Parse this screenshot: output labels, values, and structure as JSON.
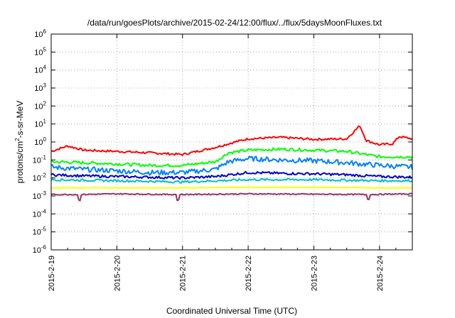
{
  "chart_data": {
    "type": "line",
    "title": "/data/run/goesPlots/archive/2015-02-24/12:00/flux/../flux/5daysMoonFluxes.txt",
    "xlabel": "Coordinated Universal Time (UTC)",
    "ylabel": {
      "prefix": "protons/cm",
      "sup": "2",
      "suffix": "-s-sr-MeV"
    },
    "y_scale": "log",
    "ylim_exp": [
      -6,
      6
    ],
    "y_tick_exps": [
      -6,
      -5,
      -4,
      -3,
      -2,
      -1,
      0,
      1,
      2,
      3,
      4,
      5,
      6
    ],
    "xlim": [
      "2015-02-19",
      "2015-02-24T12:00"
    ],
    "x_tick_labels": [
      "2015-2-19",
      "2015-2-20",
      "2015-2-21",
      "2015-2-22",
      "2015-2-23",
      "2015-2-24"
    ],
    "grid": true,
    "series": [
      {
        "color": "#ff0000",
        "x": [
          0,
          0.25,
          0.5,
          1.0,
          1.5,
          2.0,
          2.5,
          2.8,
          3.0,
          3.5,
          4.0,
          4.5,
          4.7,
          4.8,
          5.0,
          5.2,
          5.3,
          5.5
        ],
        "values": [
          0.3,
          0.6,
          0.35,
          0.3,
          0.25,
          0.2,
          0.5,
          1.0,
          1.5,
          1.8,
          1.4,
          1.5,
          8.0,
          1.2,
          0.7,
          0.8,
          2.0,
          1.5
        ]
      },
      {
        "color": "#00ff00",
        "x": [
          0,
          0.5,
          1.0,
          1.5,
          2.0,
          2.5,
          2.7,
          3.0,
          3.5,
          4.0,
          4.5,
          5.0,
          5.5
        ],
        "values": [
          0.08,
          0.07,
          0.06,
          0.05,
          0.05,
          0.08,
          0.25,
          0.35,
          0.4,
          0.35,
          0.3,
          0.15,
          0.15
        ]
      },
      {
        "color": "#0080ff",
        "x": [
          0,
          0.5,
          1.0,
          1.5,
          2.0,
          2.5,
          2.7,
          3.0,
          3.5,
          4.0,
          4.5,
          5.0,
          5.5
        ],
        "values": [
          0.04,
          0.03,
          0.025,
          0.02,
          0.02,
          0.03,
          0.08,
          0.12,
          0.1,
          0.09,
          0.07,
          0.05,
          0.04
        ]
      },
      {
        "color": "#0000cc",
        "x": [
          0,
          0.5,
          1.0,
          1.5,
          2.0,
          2.5,
          3.0,
          3.5,
          4.0,
          4.5,
          5.0,
          5.5
        ],
        "values": [
          0.015,
          0.013,
          0.012,
          0.011,
          0.01,
          0.012,
          0.02,
          0.018,
          0.017,
          0.015,
          0.012,
          0.011
        ]
      },
      {
        "color": "#00bfbf",
        "x": [
          0,
          1.0,
          2.0,
          3.0,
          4.0,
          5.0,
          5.5
        ],
        "values": [
          0.008,
          0.007,
          0.006,
          0.008,
          0.008,
          0.007,
          0.007
        ]
      },
      {
        "color": "#ffff00",
        "x": [
          0,
          1.0,
          2.0,
          3.0,
          4.0,
          5.0,
          5.5
        ],
        "values": [
          0.0028,
          0.0028,
          0.0028,
          0.003,
          0.003,
          0.0028,
          0.0028
        ]
      },
      {
        "color": "#993366",
        "x": [
          0,
          0.4,
          0.43,
          0.46,
          1.0,
          1.9,
          1.93,
          1.96,
          3.0,
          4.8,
          4.83,
          4.86,
          5.5
        ],
        "values": [
          0.0012,
          0.0012,
          0.0004,
          0.0012,
          0.0013,
          0.0012,
          0.0004,
          0.0012,
          0.0013,
          0.0012,
          0.0005,
          0.0012,
          0.0013
        ]
      }
    ]
  }
}
